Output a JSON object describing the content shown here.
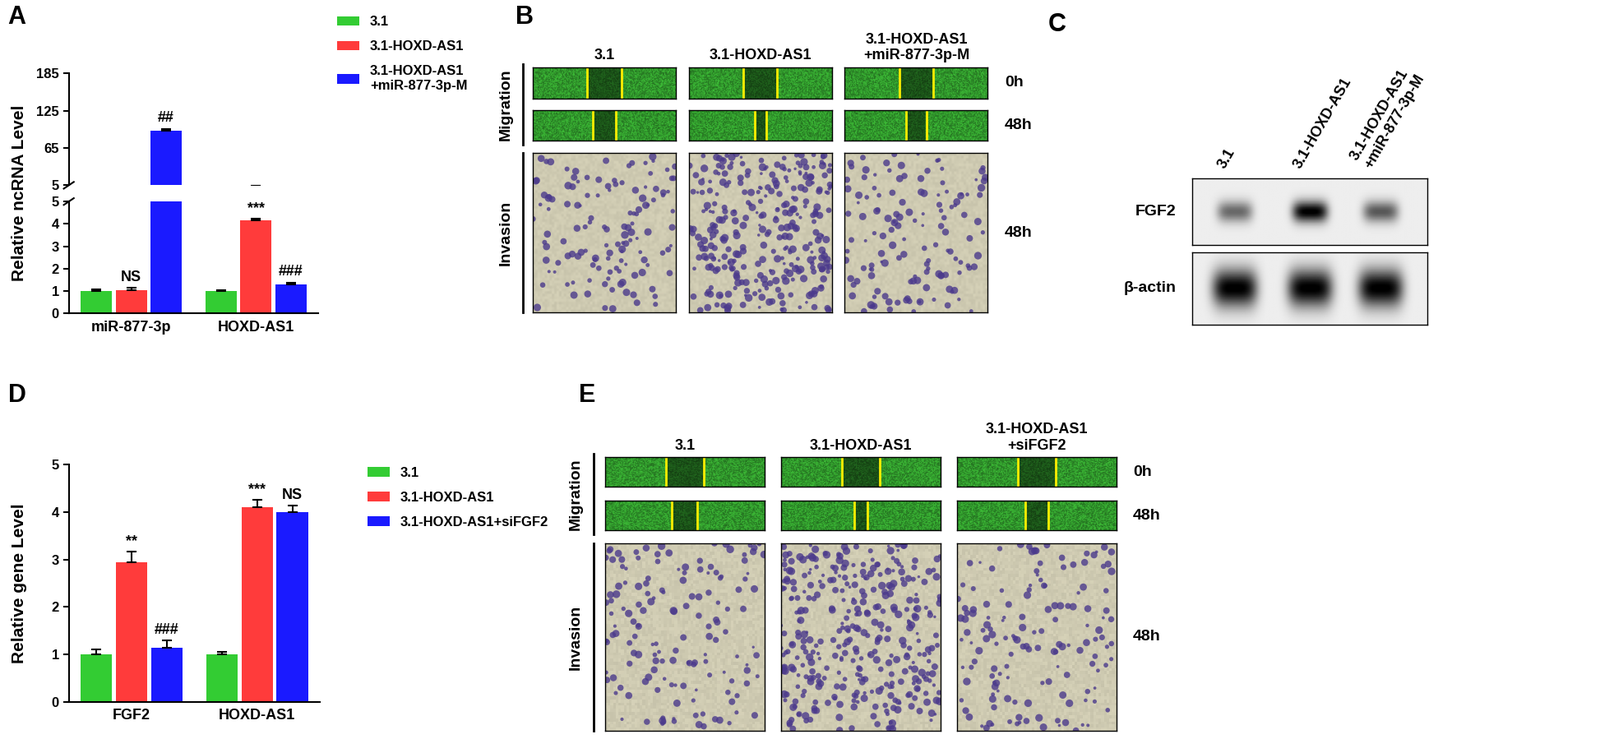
{
  "chart_data": [
    {
      "panel": "A",
      "type": "bar",
      "ylabel": "Relative ncRNA Level",
      "categories": [
        "miR-877-3p",
        "HOXD-AS1"
      ],
      "axis_segments": [
        {
          "ylim": [
            0,
            5
          ],
          "yticks": [
            0,
            1,
            2,
            3,
            4,
            5
          ]
        },
        {
          "ylim": [
            5,
            185
          ],
          "yticks": [
            5,
            65,
            125,
            185
          ]
        }
      ],
      "series": [
        {
          "name": "3.1",
          "color": "#33cc33",
          "values": [
            1.0,
            1.0
          ],
          "errors": [
            0.06,
            0.04
          ]
        },
        {
          "name": "3.1-HOXD-AS1",
          "color": "#ff3b3b",
          "values": [
            1.05,
            4.15
          ],
          "errors": [
            0.08,
            0.08
          ]
        },
        {
          "name": "3.1-HOXD-AS1\n+miR-877-3p-M",
          "color": "#1a1aff",
          "values": [
            93,
            1.3
          ],
          "errors": [
            3,
            0.08
          ]
        }
      ],
      "annotations": [
        {
          "text": "NS",
          "series": "3.1-HOXD-AS1",
          "category": "miR-877-3p"
        },
        {
          "text": "##",
          "series": "3.1-HOXD-AS1\n+miR-877-3p-M",
          "category": "miR-877-3p"
        },
        {
          "text": "***",
          "series": "3.1-HOXD-AS1",
          "category": "HOXD-AS1"
        },
        {
          "text": "###",
          "series": "3.1-HOXD-AS1\n+miR-877-3p-M",
          "category": "HOXD-AS1"
        }
      ],
      "legend": "upper left"
    },
    {
      "panel": "D",
      "type": "bar",
      "ylabel": "Relative gene Level",
      "categories": [
        "FGF2",
        "HOXD-AS1"
      ],
      "ylim": [
        0,
        5
      ],
      "yticks": [
        0,
        1,
        2,
        3,
        4,
        5
      ],
      "series": [
        {
          "name": "3.1",
          "color": "#33cc33",
          "values": [
            1.0,
            1.0
          ],
          "errors": [
            0.1,
            0.05
          ]
        },
        {
          "name": "3.1-HOXD-AS1",
          "color": "#ff3b3b",
          "values": [
            2.95,
            4.1
          ],
          "errors": [
            0.22,
            0.15
          ]
        },
        {
          "name": "3.1-HOXD-AS1+siFGF2",
          "color": "#1a1aff",
          "values": [
            1.15,
            4.0
          ],
          "errors": [
            0.15,
            0.13
          ]
        }
      ],
      "annotations": [
        {
          "text": "**",
          "series": "3.1-HOXD-AS1",
          "category": "FGF2"
        },
        {
          "text": "###",
          "series": "3.1-HOXD-AS1+siFGF2",
          "category": "FGF2"
        },
        {
          "text": "***",
          "series": "3.1-HOXD-AS1",
          "category": "HOXD-AS1"
        },
        {
          "text": "NS",
          "series": "3.1-HOXD-AS1+siFGF2",
          "category": "HOXD-AS1"
        }
      ],
      "legend": "upper left"
    }
  ],
  "images": [
    {
      "panel": "B",
      "columns": [
        "3.1",
        "3.1-HOXD-AS1",
        "3.1-HOXD-AS1\n+miR-877-3p-M"
      ],
      "rows": [
        "Migration",
        "Invasion"
      ],
      "times": [
        "0h",
        "48h",
        "48h"
      ]
    },
    {
      "panel": "E",
      "columns": [
        "3.1",
        "3.1-HOXD-AS1",
        "3.1-HOXD-AS1\n+siFGF2"
      ],
      "rows": [
        "Migration",
        "Invasion"
      ],
      "times": [
        "0h",
        "48h",
        "48h"
      ]
    }
  ],
  "blot": {
    "panel": "C",
    "columns": [
      "3.1",
      "3.1-HOXD-AS1",
      "3.1-HOXD-AS1\n+miR-877-3p-M"
    ],
    "rows": [
      "FGF2",
      "β-actin"
    ]
  }
}
